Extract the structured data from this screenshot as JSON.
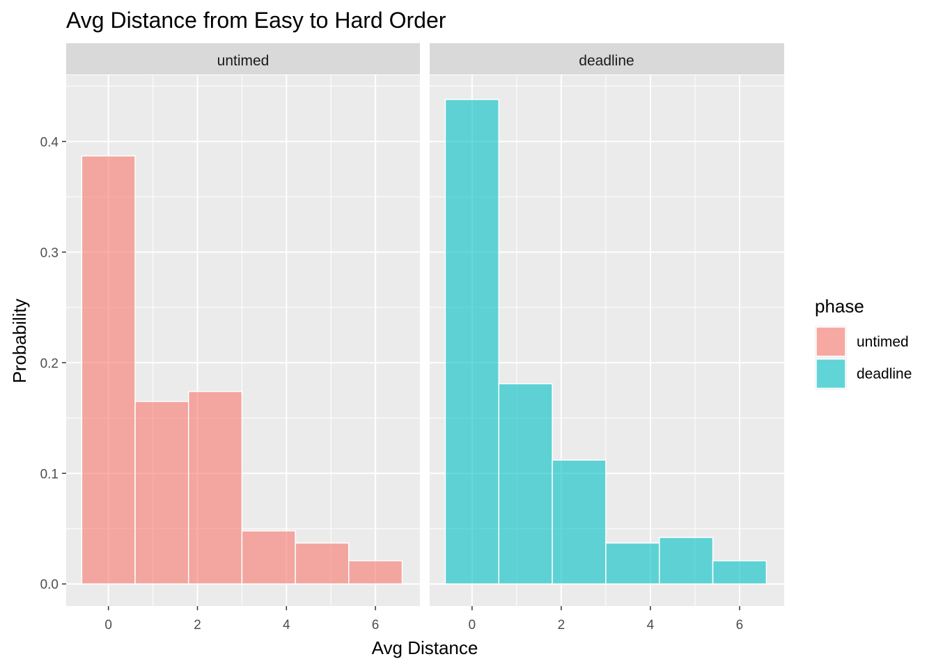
{
  "chart_data": {
    "type": "bar",
    "title": "Avg Distance from Easy to Hard Order",
    "xlabel": "Avg Distance",
    "ylabel": "Probability",
    "xlim": [
      -0.95,
      7.0
    ],
    "ylim": [
      -0.02,
      0.46
    ],
    "x_ticks": [
      0,
      2,
      4,
      6
    ],
    "y_ticks": [
      0.0,
      0.1,
      0.2,
      0.3,
      0.4
    ],
    "x_tick_labels": [
      "0",
      "2",
      "4",
      "6"
    ],
    "y_tick_labels": [
      "0.0",
      "0.1",
      "0.2",
      "0.3",
      "0.4"
    ],
    "bin_width": 1.2,
    "bin_starts": [
      -0.6,
      0.6,
      1.8,
      3.0,
      4.2,
      5.4
    ],
    "grid": true,
    "legend": {
      "title": "phase",
      "position": "right",
      "entries": [
        {
          "label": "untimed",
          "color": "#f8766d"
        },
        {
          "label": "deadline",
          "color": "#00bfc4"
        }
      ]
    },
    "panels": [
      {
        "strip": "untimed",
        "color": "#f8766d",
        "values": [
          0.387,
          0.165,
          0.174,
          0.048,
          0.037,
          0.021
        ]
      },
      {
        "strip": "deadline",
        "color": "#00bfc4",
        "values": [
          0.438,
          0.181,
          0.112,
          0.037,
          0.042,
          0.021
        ]
      }
    ],
    "bar_opacity": 0.6
  }
}
